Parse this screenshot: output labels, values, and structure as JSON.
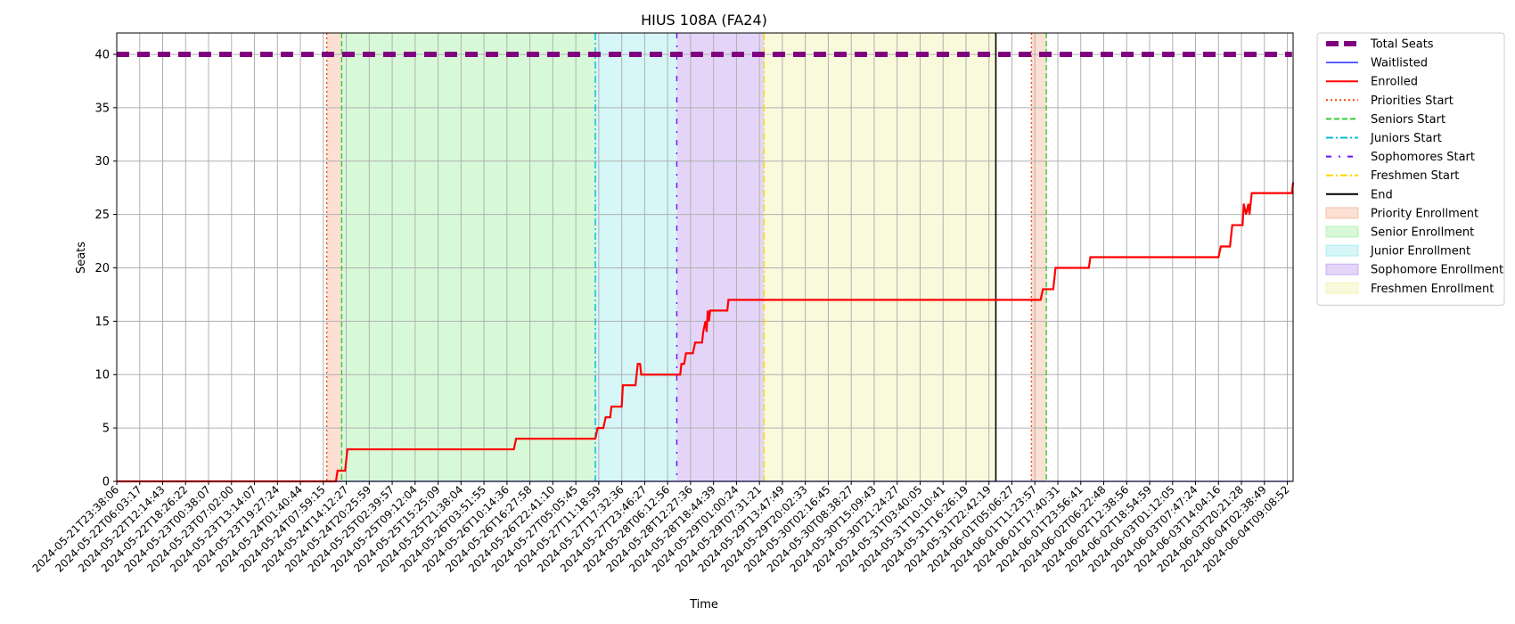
{
  "chart_data": {
    "type": "line",
    "title": "HIUS 108A (FA24)",
    "xlabel": "Time",
    "ylabel": "Seats",
    "ylim": [
      0,
      42
    ],
    "yticks": [
      0,
      5,
      10,
      15,
      20,
      25,
      30,
      35,
      40
    ],
    "grid": true,
    "legend_placement": "outside-right",
    "x_tick_labels": [
      "2024-05-21T23:38:06",
      "2024-05-22T06:03:17",
      "2024-05-22T12:14:43",
      "2024-05-22T18:26:22",
      "2024-05-23T00:38:07",
      "2024-05-23T07:02:00",
      "2024-05-23T13:14:07",
      "2024-05-23T19:27:24",
      "2024-05-24T01:40:44",
      "2024-05-24T07:59:15",
      "2024-05-24T14:12:27",
      "2024-05-24T20:25:59",
      "2024-05-25T02:39:57",
      "2024-05-25T09:12:04",
      "2024-05-25T15:25:09",
      "2024-05-25T21:38:04",
      "2024-05-26T03:51:55",
      "2024-05-26T10:14:36",
      "2024-05-26T16:27:58",
      "2024-05-26T22:41:10",
      "2024-05-27T05:05:45",
      "2024-05-27T11:18:59",
      "2024-05-27T17:32:36",
      "2024-05-27T23:46:27",
      "2024-05-28T06:12:56",
      "2024-05-28T12:27:36",
      "2024-05-28T18:44:39",
      "2024-05-29T01:00:24",
      "2024-05-29T07:31:21",
      "2024-05-29T13:47:49",
      "2024-05-29T20:02:33",
      "2024-05-30T02:16:45",
      "2024-05-30T08:38:27",
      "2024-05-30T15:09:43",
      "2024-05-30T21:24:27",
      "2024-05-31T03:40:05",
      "2024-05-31T10:10:41",
      "2024-05-31T16:26:19",
      "2024-05-31T22:42:19",
      "2024-06-01T05:06:27",
      "2024-06-01T11:23:57",
      "2024-06-01T17:40:31",
      "2024-06-01T23:56:41",
      "2024-06-02T06:22:48",
      "2024-06-02T12:38:56",
      "2024-06-02T18:54:59",
      "2024-06-03T01:12:05",
      "2024-06-03T07:47:24",
      "2024-06-03T14:04:16",
      "2024-06-03T20:21:28",
      "2024-06-04T02:38:49",
      "2024-06-04T09:08:52"
    ],
    "series": [
      {
        "name": "Total Seats",
        "color": "#800080",
        "style": "dashed-thick",
        "points": [
          [
            0,
            40
          ],
          [
            51.2,
            40
          ]
        ]
      },
      {
        "name": "Waitlisted",
        "color": "#0000ff",
        "style": "solid-thin",
        "points": [
          [
            0,
            0
          ],
          [
            51.2,
            0
          ]
        ]
      },
      {
        "name": "Enrolled",
        "color": "#ff0000",
        "style": "solid",
        "points": [
          [
            0,
            0
          ],
          [
            9.55,
            0
          ],
          [
            9.62,
            1
          ],
          [
            9.95,
            1
          ],
          [
            10.05,
            3
          ],
          [
            17.3,
            3
          ],
          [
            17.4,
            4
          ],
          [
            20.85,
            4
          ],
          [
            20.95,
            5
          ],
          [
            21.2,
            5
          ],
          [
            21.3,
            6
          ],
          [
            21.5,
            6
          ],
          [
            21.55,
            7
          ],
          [
            22,
            7
          ],
          [
            22.05,
            9
          ],
          [
            22.6,
            9
          ],
          [
            22.7,
            11
          ],
          [
            22.8,
            11
          ],
          [
            22.85,
            10
          ],
          [
            24.55,
            10
          ],
          [
            24.6,
            11
          ],
          [
            24.72,
            11
          ],
          [
            24.8,
            12
          ],
          [
            25.1,
            12
          ],
          [
            25.2,
            13
          ],
          [
            25.5,
            13
          ],
          [
            25.55,
            14
          ],
          [
            25.65,
            15
          ],
          [
            25.7,
            14
          ],
          [
            25.75,
            16
          ],
          [
            25.8,
            15
          ],
          [
            25.85,
            16
          ],
          [
            26.6,
            16
          ],
          [
            26.65,
            17
          ],
          [
            40.25,
            17
          ],
          [
            40.35,
            18
          ],
          [
            40.8,
            18
          ],
          [
            40.9,
            20
          ],
          [
            42.35,
            20
          ],
          [
            42.42,
            21
          ],
          [
            48.0,
            21
          ],
          [
            48.1,
            22
          ],
          [
            48.5,
            22
          ],
          [
            48.6,
            24
          ],
          [
            49.05,
            24
          ],
          [
            49.1,
            26
          ],
          [
            49.2,
            25
          ],
          [
            49.3,
            26
          ],
          [
            49.35,
            25
          ],
          [
            49.45,
            27
          ],
          [
            51.2,
            27
          ],
          [
            51.25,
            28
          ]
        ]
      }
    ],
    "event_lines": [
      {
        "name": "Priorities Start",
        "x": 9.15,
        "color": "#ff4500",
        "style": "dotted"
      },
      {
        "name": "Seniors Start",
        "x": 9.8,
        "color": "#32cd32",
        "style": "dashed"
      },
      {
        "name": "Juniors Start",
        "x": 20.85,
        "color": "#00bcd4",
        "style": "dashdot"
      },
      {
        "name": "Sophomores Start",
        "x": 24.4,
        "color": "#6a0dff",
        "style": "loose-dashdot"
      },
      {
        "name": "Freshmen Start",
        "x": 28.2,
        "color": "#ffd700",
        "style": "dashdot"
      },
      {
        "name": "End",
        "x": 38.3,
        "color": "#000000",
        "style": "solid"
      },
      {
        "name": "Priorities Start",
        "x": 39.85,
        "color": "#ff4500",
        "style": "dotted"
      },
      {
        "name": "Seniors Start",
        "x": 40.5,
        "color": "#32cd32",
        "style": "dashed"
      }
    ],
    "shaded_regions": [
      {
        "name": "Priority Enrollment",
        "x0": 9.15,
        "x1": 9.8,
        "color": "#f4a582"
      },
      {
        "name": "Senior Enrollment",
        "x0": 9.8,
        "x1": 20.85,
        "color": "#90ee90"
      },
      {
        "name": "Junior Enrollment",
        "x0": 20.85,
        "x1": 24.4,
        "color": "#8ae6e8"
      },
      {
        "name": "Sophomore Enrollment",
        "x0": 24.4,
        "x1": 28.2,
        "color": "#b388eb"
      },
      {
        "name": "Freshmen Enrollment",
        "x0": 28.2,
        "x1": 38.3,
        "color": "#eeef9b"
      },
      {
        "name": "Priority Enrollment",
        "x0": 39.85,
        "x1": 40.5,
        "color": "#f4a582"
      }
    ],
    "legend": [
      {
        "label": "Total Seats",
        "kind": "line",
        "color": "#800080",
        "style": "dashed-thick"
      },
      {
        "label": "Waitlisted",
        "kind": "line",
        "color": "#0000ff",
        "style": "solid-thin"
      },
      {
        "label": "Enrolled",
        "kind": "line",
        "color": "#ff0000",
        "style": "solid"
      },
      {
        "label": "Priorities Start",
        "kind": "line",
        "color": "#ff4500",
        "style": "dotted"
      },
      {
        "label": "Seniors Start",
        "kind": "line",
        "color": "#32cd32",
        "style": "dashed"
      },
      {
        "label": "Juniors Start",
        "kind": "line",
        "color": "#00bcd4",
        "style": "dashdot"
      },
      {
        "label": "Sophomores Start",
        "kind": "line",
        "color": "#6a0dff",
        "style": "loose-dashdot"
      },
      {
        "label": "Freshmen Start",
        "kind": "line",
        "color": "#ffd700",
        "style": "dashdot"
      },
      {
        "label": "End",
        "kind": "line",
        "color": "#000000",
        "style": "solid"
      },
      {
        "label": "Priority Enrollment",
        "kind": "patch",
        "color": "#f4a582"
      },
      {
        "label": "Senior Enrollment",
        "kind": "patch",
        "color": "#90ee90"
      },
      {
        "label": "Junior Enrollment",
        "kind": "patch",
        "color": "#8ae6e8"
      },
      {
        "label": "Sophomore Enrollment",
        "kind": "patch",
        "color": "#b388eb"
      },
      {
        "label": "Freshmen Enrollment",
        "kind": "patch",
        "color": "#eeef9b"
      }
    ]
  }
}
